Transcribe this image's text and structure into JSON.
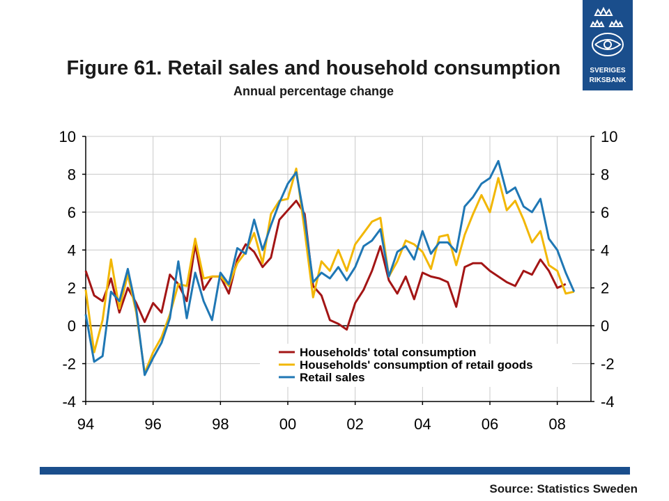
{
  "title": "Figure 61. Retail sales and household consumption",
  "subtitle": "Annual percentage change",
  "source": "Source: Statistics Sweden",
  "logo": {
    "line1": "SVERIGES",
    "line2": "RIKSBANK"
  },
  "colors": {
    "brand": "#1a4e8c",
    "total": "#a31515",
    "retail_goods": "#f2b705",
    "retail_sales": "#1f77b4"
  },
  "chart_data": {
    "type": "line",
    "x_tick_labels": [
      "94",
      "96",
      "98",
      "00",
      "02",
      "04",
      "06",
      "08"
    ],
    "y_tick_labels": [
      "10",
      "8",
      "6",
      "4",
      "2",
      "0",
      "-2",
      "-4"
    ],
    "ylim": [
      -4,
      10
    ],
    "xlim": [
      1994,
      2009
    ],
    "grid": true,
    "legend_position": "lower-right",
    "series": [
      {
        "name": "Households' total consumption",
        "color": "#a31515",
        "x": [
          1994.0,
          1994.25,
          1994.5,
          1994.75,
          1995.0,
          1995.25,
          1995.5,
          1995.75,
          1996.0,
          1996.25,
          1996.5,
          1996.75,
          1997.0,
          1997.25,
          1997.5,
          1997.75,
          1998.0,
          1998.25,
          1998.5,
          1998.75,
          1999.0,
          1999.25,
          1999.5,
          1999.75,
          2000.0,
          2000.25,
          2000.5,
          2000.75,
          2001.0,
          2001.25,
          2001.5,
          2001.75,
          2002.0,
          2002.25,
          2002.5,
          2002.75,
          2003.0,
          2003.25,
          2003.5,
          2003.75,
          2004.0,
          2004.25,
          2004.5,
          2004.75,
          2005.0,
          2005.25,
          2005.5,
          2005.75,
          2006.0,
          2006.25,
          2006.5,
          2006.75,
          2007.0,
          2007.25,
          2007.5,
          2007.75,
          2008.0,
          2008.25
        ],
        "values": [
          2.9,
          1.6,
          1.3,
          2.5,
          0.7,
          2.0,
          1.2,
          0.2,
          1.2,
          0.7,
          2.7,
          2.2,
          1.3,
          4.3,
          1.9,
          2.6,
          2.6,
          1.7,
          3.5,
          4.3,
          3.9,
          3.1,
          3.6,
          5.6,
          6.1,
          6.6,
          5.9,
          2.1,
          1.6,
          0.3,
          0.1,
          -0.2,
          1.2,
          1.9,
          2.9,
          4.2,
          2.4,
          1.7,
          2.6,
          1.4,
          2.8,
          2.6,
          2.5,
          2.3,
          1.0,
          3.1,
          3.3,
          3.3,
          2.9,
          2.6,
          2.3,
          2.1,
          2.9,
          2.7,
          3.5,
          2.9,
          2.0,
          2.2
        ]
      },
      {
        "name": "Households' consumption of retail goods",
        "color": "#f2b705",
        "x": [
          1994.0,
          1994.25,
          1994.5,
          1994.75,
          1995.0,
          1995.25,
          1995.5,
          1995.75,
          1996.0,
          1996.25,
          1996.5,
          1996.75,
          1997.0,
          1997.25,
          1997.5,
          1997.75,
          1998.0,
          1998.25,
          1998.5,
          1998.75,
          1999.0,
          1999.25,
          1999.5,
          1999.75,
          2000.0,
          2000.25,
          2000.5,
          2000.75,
          2001.0,
          2001.25,
          2001.5,
          2001.75,
          2002.0,
          2002.25,
          2002.5,
          2002.75,
          2003.0,
          2003.25,
          2003.5,
          2003.75,
          2004.0,
          2004.25,
          2004.5,
          2004.75,
          2005.0,
          2005.25,
          2005.5,
          2005.75,
          2006.0,
          2006.25,
          2006.5,
          2006.75,
          2007.0,
          2007.25,
          2007.5,
          2007.75,
          2008.0,
          2008.25,
          2008.5
        ],
        "values": [
          1.9,
          -1.4,
          0.3,
          3.5,
          0.9,
          2.7,
          0.7,
          -2.5,
          -1.4,
          -0.6,
          0.6,
          2.2,
          2.1,
          4.6,
          2.5,
          2.6,
          2.6,
          2.1,
          3.3,
          3.9,
          4.9,
          3.3,
          5.9,
          6.6,
          6.7,
          8.3,
          5.0,
          1.5,
          3.4,
          2.9,
          4.0,
          2.9,
          4.3,
          4.9,
          5.5,
          5.7,
          2.6,
          3.4,
          4.5,
          4.3,
          3.9,
          3.0,
          4.7,
          4.8,
          3.2,
          4.8,
          5.9,
          6.9,
          6.0,
          7.8,
          6.1,
          6.6,
          5.6,
          4.4,
          5.0,
          3.2,
          2.9,
          1.7,
          1.8
        ]
      },
      {
        "name": "Retail sales",
        "color": "#1f77b4",
        "x": [
          1994.0,
          1994.25,
          1994.5,
          1994.75,
          1995.0,
          1995.25,
          1995.5,
          1995.75,
          1996.0,
          1996.25,
          1996.5,
          1996.75,
          1997.0,
          1997.25,
          1997.5,
          1997.75,
          1998.0,
          1998.25,
          1998.5,
          1998.75,
          1999.0,
          1999.25,
          1999.5,
          1999.75,
          2000.0,
          2000.25,
          2000.5,
          2000.75,
          2001.0,
          2001.25,
          2001.5,
          2001.75,
          2002.0,
          2002.25,
          2002.5,
          2002.75,
          2003.0,
          2003.25,
          2003.5,
          2003.75,
          2004.0,
          2004.25,
          2004.5,
          2004.75,
          2005.0,
          2005.25,
          2005.5,
          2005.75,
          2006.0,
          2006.25,
          2006.5,
          2006.75,
          2007.0,
          2007.25,
          2007.5,
          2007.75,
          2008.0,
          2008.25,
          2008.5
        ],
        "values": [
          0.6,
          -1.9,
          -1.6,
          1.8,
          1.3,
          3.0,
          0.9,
          -2.6,
          -1.7,
          -0.9,
          0.4,
          3.4,
          0.4,
          2.8,
          1.3,
          0.3,
          2.8,
          2.2,
          4.1,
          3.8,
          5.6,
          4.0,
          5.3,
          6.5,
          7.5,
          8.1,
          5.6,
          2.3,
          2.8,
          2.5,
          3.1,
          2.4,
          3.1,
          4.2,
          4.5,
          5.1,
          2.6,
          3.9,
          4.2,
          3.5,
          5.0,
          3.8,
          4.4,
          4.4,
          3.9,
          6.3,
          6.8,
          7.5,
          7.8,
          8.7,
          7.0,
          7.3,
          6.3,
          6.0,
          6.7,
          4.6,
          4.0,
          2.8,
          1.8
        ]
      }
    ]
  }
}
